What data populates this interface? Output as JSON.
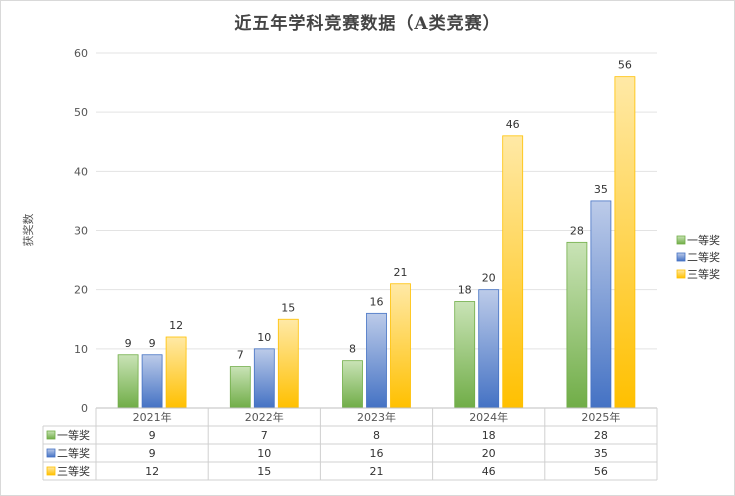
{
  "chart_data": {
    "type": "bar",
    "title": "近五年学科竞赛数据（A类竞赛）",
    "ylabel": "获奖数",
    "xlabel": "",
    "ylim": [
      0,
      60
    ],
    "yticks": [
      0,
      10,
      20,
      30,
      40,
      50,
      60
    ],
    "categories": [
      "2021年",
      "2022年",
      "2023年",
      "2024年",
      "2025年"
    ],
    "series": [
      {
        "name": "一等奖",
        "values": [
          9,
          7,
          8,
          18,
          28
        ],
        "color": "#70ad47",
        "color_light": "#c9e3b6"
      },
      {
        "name": "二等奖",
        "values": [
          9,
          10,
          16,
          20,
          35
        ],
        "color": "#4472c4",
        "color_light": "#bccbe9"
      },
      {
        "name": "三等奖",
        "values": [
          12,
          15,
          21,
          46,
          56
        ],
        "color": "#ffc000",
        "color_light": "#ffe9a6"
      }
    ],
    "grid": true,
    "legend": "right",
    "data_labels": true,
    "data_table": true
  }
}
